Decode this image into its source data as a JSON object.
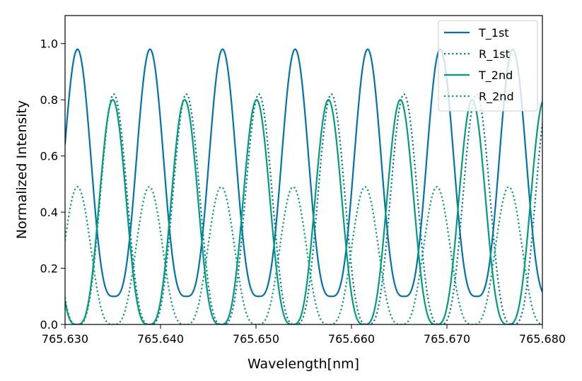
{
  "chart_data": {
    "type": "line",
    "title": "",
    "xlabel": "Wavelength[nm]",
    "ylabel": "Normalized Intensity",
    "xlim": [
      765.63,
      765.68
    ],
    "ylim": [
      0.0,
      1.1
    ],
    "grid": false,
    "legend_position": "top-right",
    "x_ticks": [
      "765.630",
      "765.640",
      "765.650",
      "765.660",
      "765.670",
      "765.680"
    ],
    "y_ticks": [
      "0.0",
      "0.2",
      "0.4",
      "0.6",
      "0.8",
      "1.0"
    ],
    "x_tick_values": [
      765.63,
      765.64,
      765.65,
      765.66,
      765.67,
      765.68
    ],
    "y_tick_values": [
      0.0,
      0.2,
      0.4,
      0.6,
      0.8,
      1.0
    ],
    "series": [
      {
        "name": "T_1st",
        "color": "#0072b2",
        "style": "solid",
        "period_nm": 0.0076,
        "peak_at_nm": 765.6313,
        "max": 0.98,
        "min": 0.1
      },
      {
        "name": "R_1st",
        "color": "#0072b2",
        "style": "dotted",
        "period_nm": 0.0076,
        "peak_at_nm": 765.6351,
        "max": 0.82,
        "min": 0.0
      },
      {
        "name": "T_2nd",
        "color": "#009e73",
        "style": "solid",
        "period_nm": 0.00753,
        "peak_at_nm": 765.635,
        "max": 0.8,
        "min": 0.0
      },
      {
        "name": "R_2nd",
        "color": "#009e73",
        "style": "dotted",
        "period_nm": 0.00753,
        "peak_at_nm": 765.6313,
        "max": 0.49,
        "min": 0.0
      }
    ]
  }
}
